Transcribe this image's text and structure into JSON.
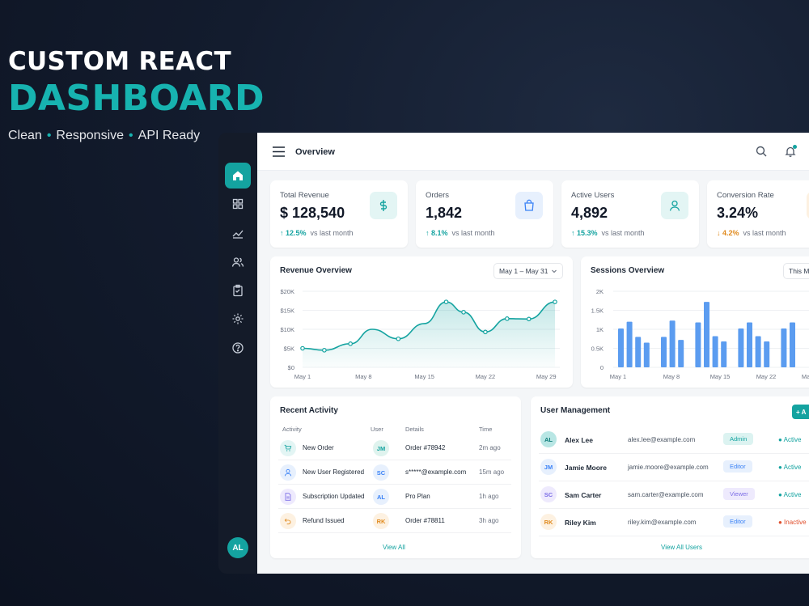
{
  "hero": {
    "line1": "CUSTOM REACT",
    "line2": "DASHBOARD",
    "tags": [
      "Clean",
      "Responsive",
      "API Ready"
    ]
  },
  "sidebar": {
    "items": [
      {
        "icon": "home-icon",
        "active": true
      },
      {
        "icon": "grid-icon",
        "active": false
      },
      {
        "icon": "trend-icon",
        "active": false
      },
      {
        "icon": "users-icon",
        "active": false
      },
      {
        "icon": "clipboard-icon",
        "active": false
      },
      {
        "icon": "gear-icon",
        "active": false
      },
      {
        "icon": "help-icon",
        "active": false
      }
    ],
    "avatar": "AL"
  },
  "header": {
    "title": "Overview"
  },
  "stats": [
    {
      "label": "Total Revenue",
      "value": "$ 128,540",
      "change": "↑ 12.5%",
      "trend": "up",
      "note": "vs last month",
      "icon": "dollar-icon",
      "icon_bg": "#e3f5f4",
      "icon_color": "#14a3a0"
    },
    {
      "label": "Orders",
      "value": "1,842",
      "change": "↑ 8.1%",
      "trend": "up",
      "note": "vs last month",
      "icon": "bag-icon",
      "icon_bg": "#e7f0fd",
      "icon_color": "#3b82f6"
    },
    {
      "label": "Active Users",
      "value": "4,892",
      "change": "↑ 15.3%",
      "trend": "up",
      "note": "vs last month",
      "icon": "user-icon",
      "icon_bg": "#e3f5f4",
      "icon_color": "#14a3a0"
    },
    {
      "label": "Conversion Rate",
      "value": "3.24%",
      "change": "↓ 4.2%",
      "trend": "down",
      "note": "vs last month",
      "icon": "percent-icon",
      "icon_bg": "#fdf1e1",
      "icon_color": "#e08a1e"
    }
  ],
  "revenue": {
    "title": "Revenue Overview",
    "range": "May 1 – May 31"
  },
  "sessions": {
    "title": "Sessions Overview",
    "range": "This M"
  },
  "chart_data": [
    {
      "type": "area",
      "title": "Revenue Overview",
      "yticks": [
        "$20K",
        "$15K",
        "$10K",
        "$5K",
        "$0"
      ],
      "ylim": [
        0,
        20000
      ],
      "xticks": [
        "May 1",
        "May 8",
        "May 15",
        "May 22",
        "May 29"
      ],
      "x": [
        1,
        3.5,
        6.5,
        9,
        12,
        15,
        17.5,
        19.5,
        22,
        24.5,
        27,
        30
      ],
      "values": [
        5000,
        4500,
        6200,
        10000,
        7500,
        11500,
        17200,
        14500,
        9300,
        12800,
        12700,
        17200
      ],
      "color": "#14a3a0"
    },
    {
      "type": "bar",
      "title": "Sessions Overview",
      "yticks": [
        "2K",
        "1.5K",
        "1K",
        "0.5K",
        "0"
      ],
      "ylim": [
        0,
        2000
      ],
      "xticks": [
        "May 1",
        "May 8",
        "May 15",
        "May 22",
        "May"
      ],
      "values": [
        1020,
        1200,
        800,
        650,
        0,
        800,
        1230,
        720,
        0,
        1180,
        1720,
        820,
        680,
        0,
        1020,
        1180,
        820,
        680,
        0,
        1020,
        1180
      ],
      "color": "#5b9cf0"
    }
  ],
  "activity": {
    "title": "Recent Activity",
    "columns": [
      "Activity",
      "User",
      "Details",
      "Time"
    ],
    "rows": [
      {
        "icon": "cart-icon",
        "icon_bg": "#e3f5f4",
        "icon_color": "#14a3a0",
        "activity": "New Order",
        "user": "JM",
        "user_bg": "#dff3ee",
        "user_color": "#14a3a0",
        "details": "Order #78942",
        "time": "2m ago"
      },
      {
        "icon": "user-icon",
        "icon_bg": "#e7f0fd",
        "icon_color": "#3b82f6",
        "activity": "New User Registered",
        "user": "SC",
        "user_bg": "#e7f0fd",
        "user_color": "#3b82f6",
        "details": "s*****@example.com",
        "time": "15m ago"
      },
      {
        "icon": "doc-icon",
        "icon_bg": "#eeeafd",
        "icon_color": "#7c6ee6",
        "activity": "Subscription Updated",
        "user": "AL",
        "user_bg": "#e7f0fd",
        "user_color": "#3b82f6",
        "details": "Pro Plan",
        "time": "1h ago"
      },
      {
        "icon": "refund-icon",
        "icon_bg": "#fdf1e1",
        "icon_color": "#e08a1e",
        "activity": "Refund Issued",
        "user": "RK",
        "user_bg": "#fdf1e1",
        "user_color": "#e08a1e",
        "details": "Order #78811",
        "time": "3h ago"
      }
    ],
    "view_all": "View All"
  },
  "users": {
    "title": "User Management",
    "add_label": "+ A",
    "rows": [
      {
        "initials": "AL",
        "av_bg": "#b8e6e4",
        "av_color": "#0f7d7a",
        "name": "Alex Lee",
        "email": "alex.lee@example.com",
        "role": "Admin",
        "role_bg": "#dcf3f1",
        "role_color": "#14a3a0",
        "status": "● Active",
        "status_color": "#14a3a0"
      },
      {
        "initials": "JM",
        "av_bg": "#e7f0fd",
        "av_color": "#3b82f6",
        "name": "Jamie Moore",
        "email": "jamie.moore@example.com",
        "role": "Editor",
        "role_bg": "#e7f0fd",
        "role_color": "#3b82f6",
        "status": "● Active",
        "status_color": "#14a3a0"
      },
      {
        "initials": "SC",
        "av_bg": "#eeeafd",
        "av_color": "#7c6ee6",
        "name": "Sam Carter",
        "email": "sam.carter@example.com",
        "role": "Viewer",
        "role_bg": "#eeeafd",
        "role_color": "#7c6ee6",
        "status": "● Active",
        "status_color": "#14a3a0"
      },
      {
        "initials": "RK",
        "av_bg": "#fdf1e1",
        "av_color": "#e08a1e",
        "name": "Riley Kim",
        "email": "riley.kim@example.com",
        "role": "Editor",
        "role_bg": "#e7f0fd",
        "role_color": "#3b82f6",
        "status": "● Inactive",
        "status_color": "#e0502e"
      }
    ],
    "view_all": "View All Users"
  }
}
